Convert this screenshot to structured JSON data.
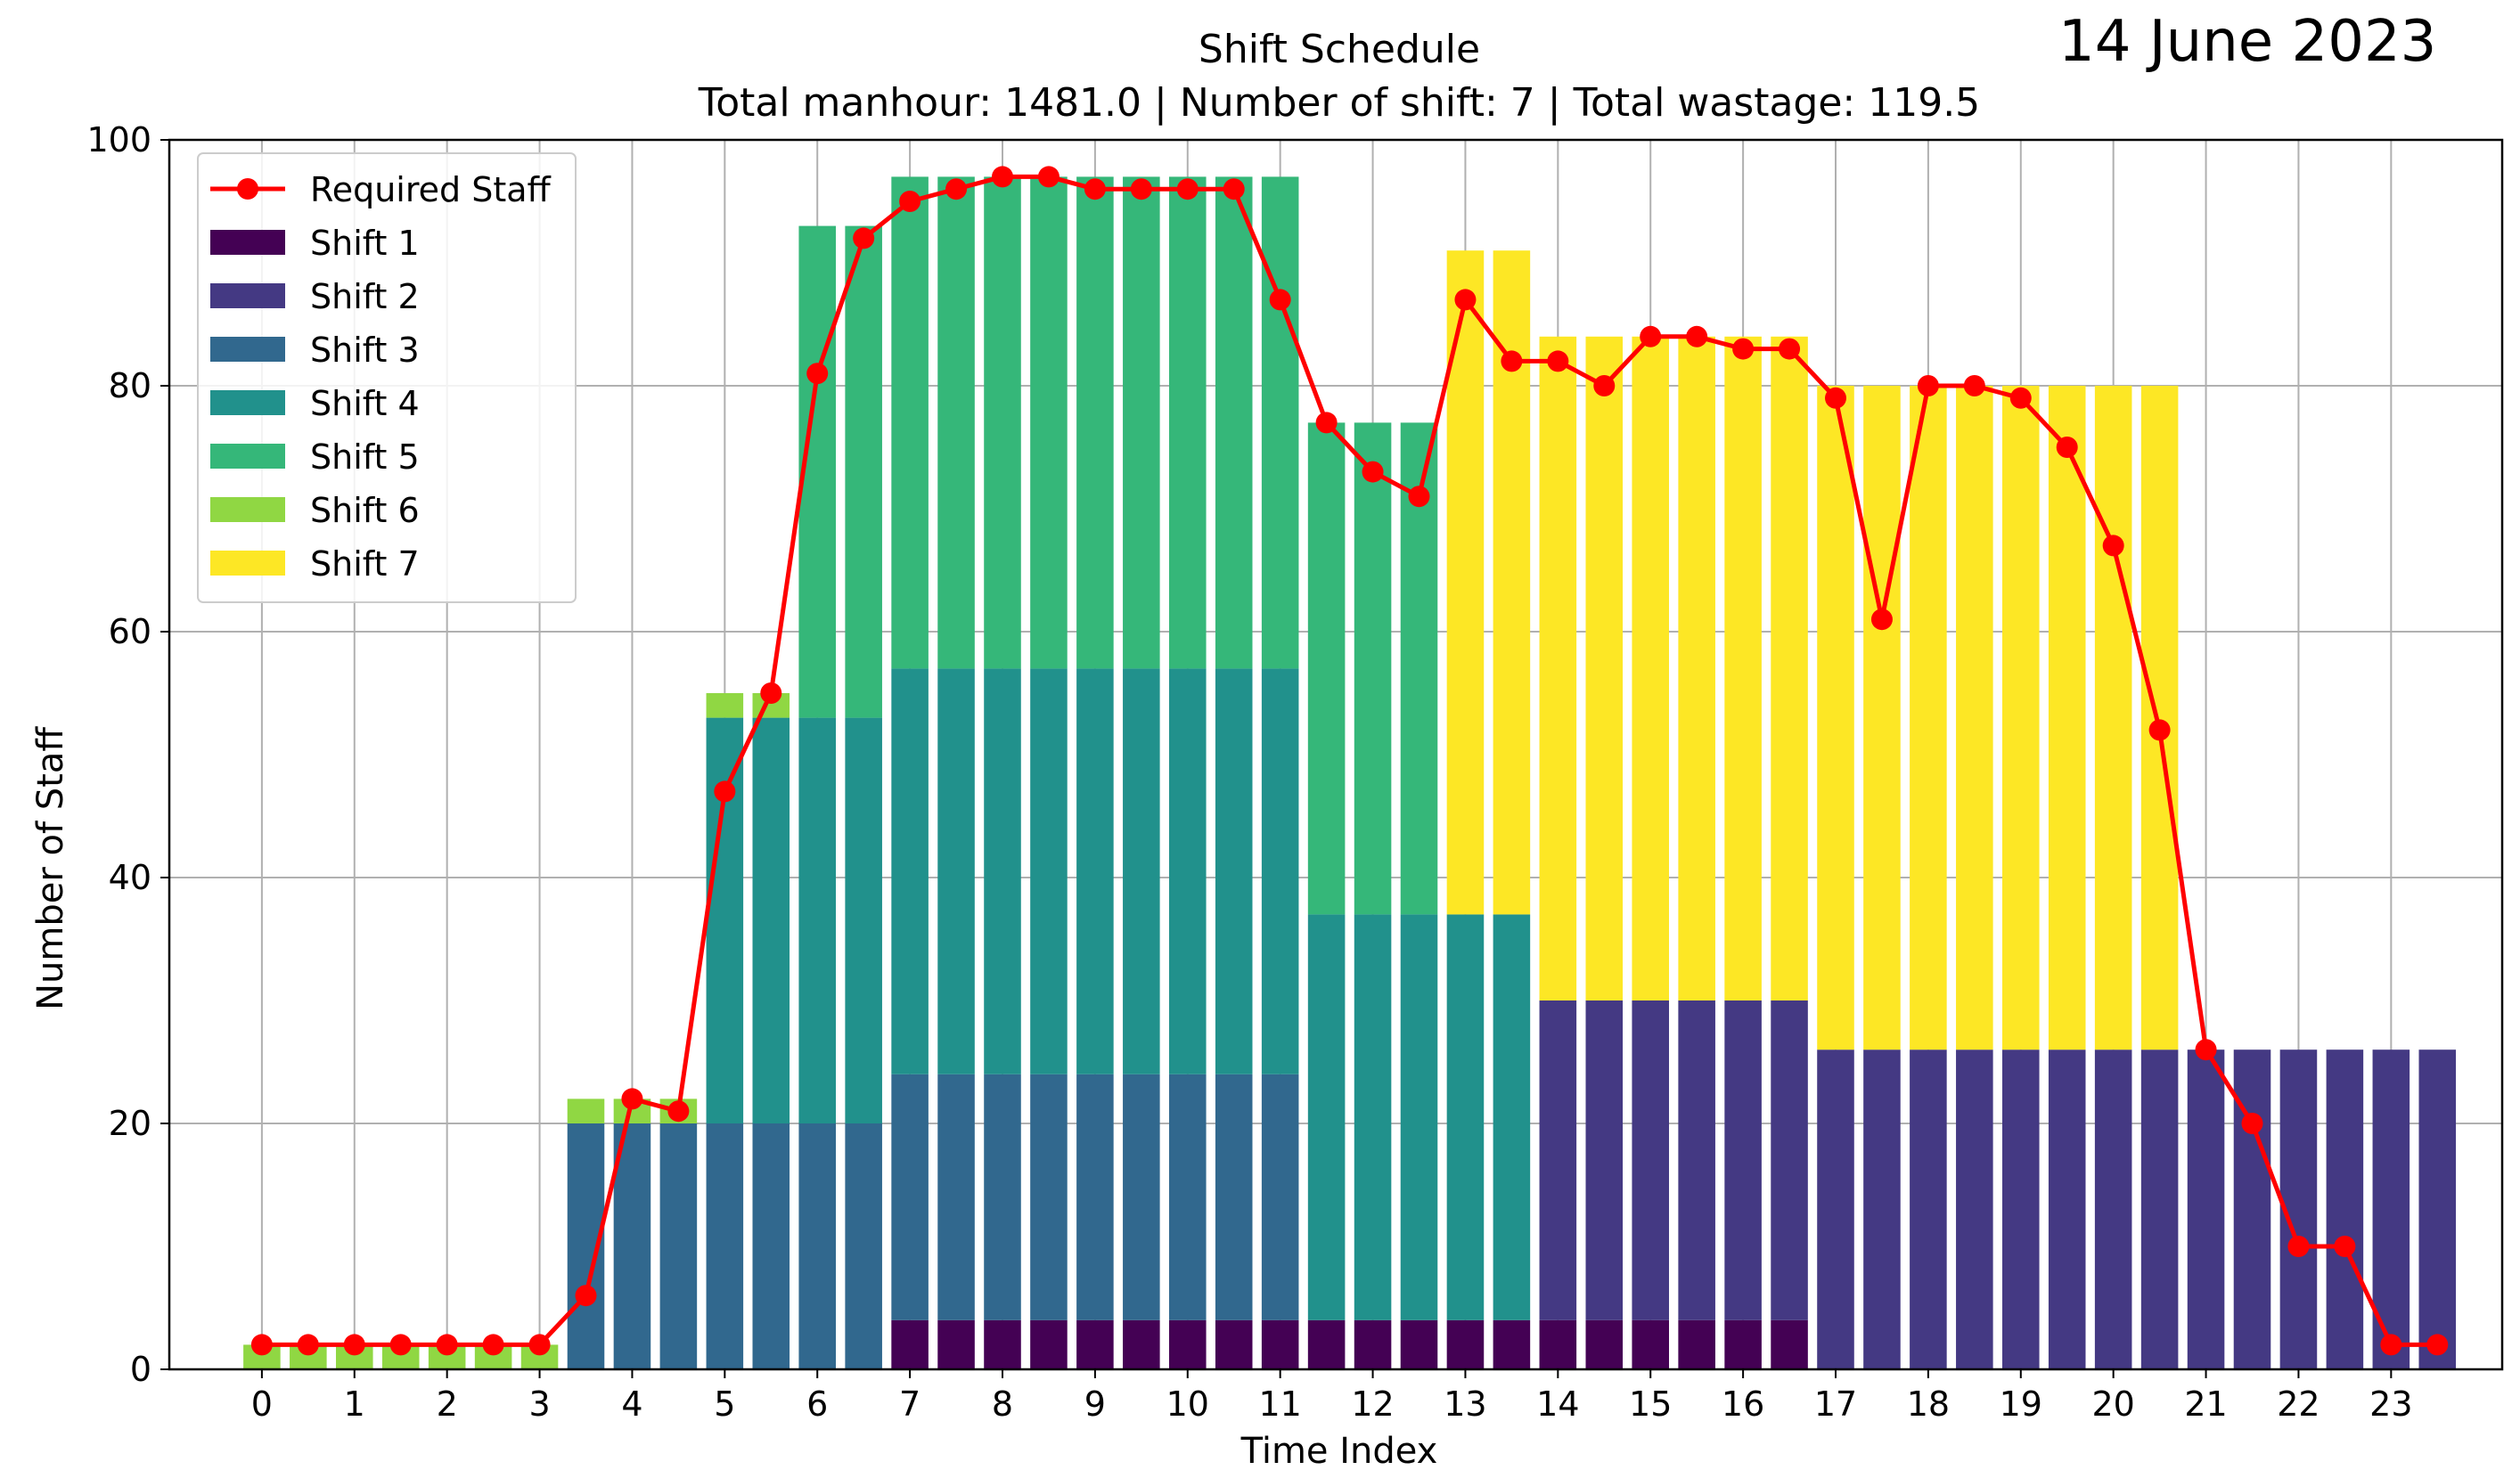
{
  "date_text": "14 June 2023",
  "chart_data": {
    "type": "bar",
    "stacked": true,
    "title": "Shift Schedule",
    "subtitle": "Total manhour: 1481.0 | Number of shift: 7 | Total wastage: 119.5",
    "xlabel": "Time Index",
    "ylabel": "Number of Staff",
    "xlim": [
      -1,
      24.2
    ],
    "ylim": [
      0,
      100
    ],
    "xticks": [
      0,
      1,
      2,
      3,
      4,
      5,
      6,
      7,
      8,
      9,
      10,
      11,
      12,
      13,
      14,
      15,
      16,
      17,
      18,
      19,
      20,
      21,
      22,
      23
    ],
    "yticks": [
      0,
      20,
      40,
      60,
      80,
      100
    ],
    "grid": true,
    "legend_position": "top-left",
    "bar_width": 0.4,
    "x": [
      0,
      0.5,
      1,
      1.5,
      2,
      2.5,
      3,
      3.5,
      4,
      4.5,
      5,
      5.5,
      6,
      6.5,
      7,
      7.5,
      8,
      8.5,
      9,
      9.5,
      10,
      10.5,
      11,
      11.5,
      12,
      12.5,
      13,
      13.5,
      14,
      14.5,
      15,
      15.5,
      16,
      16.5,
      17,
      17.5,
      18,
      18.5,
      19,
      19.5,
      20,
      20.5,
      21,
      21.5,
      22,
      22.5,
      23,
      23.5
    ],
    "series": [
      {
        "name": "Shift 1",
        "color": "#440154",
        "values": [
          0,
          0,
          0,
          0,
          0,
          0,
          0,
          0,
          0,
          0,
          0,
          0,
          0,
          0,
          4,
          4,
          4,
          4,
          4,
          4,
          4,
          4,
          4,
          4,
          4,
          4,
          4,
          4,
          4,
          4,
          4,
          4,
          4,
          4,
          0,
          0,
          0,
          0,
          0,
          0,
          0,
          0,
          0,
          0,
          0,
          0,
          0,
          0
        ]
      },
      {
        "name": "Shift 2",
        "color": "#443983",
        "values": [
          0,
          0,
          0,
          0,
          0,
          0,
          0,
          0,
          0,
          0,
          0,
          0,
          0,
          0,
          0,
          0,
          0,
          0,
          0,
          0,
          0,
          0,
          0,
          0,
          0,
          0,
          0,
          0,
          26,
          26,
          26,
          26,
          26,
          26,
          26,
          26,
          26,
          26,
          26,
          26,
          26,
          26,
          26,
          26,
          26,
          26,
          26,
          26
        ]
      },
      {
        "name": "Shift 3",
        "color": "#31688e",
        "values": [
          0,
          0,
          0,
          0,
          0,
          0,
          0,
          20,
          20,
          20,
          20,
          20,
          20,
          20,
          20,
          20,
          20,
          20,
          20,
          20,
          20,
          20,
          20,
          0,
          0,
          0,
          0,
          0,
          0,
          0,
          0,
          0,
          0,
          0,
          0,
          0,
          0,
          0,
          0,
          0,
          0,
          0,
          0,
          0,
          0,
          0,
          0,
          0
        ]
      },
      {
        "name": "Shift 4",
        "color": "#21918c",
        "values": [
          0,
          0,
          0,
          0,
          0,
          0,
          0,
          0,
          0,
          0,
          33,
          33,
          33,
          33,
          33,
          33,
          33,
          33,
          33,
          33,
          33,
          33,
          33,
          33,
          33,
          33,
          33,
          33,
          0,
          0,
          0,
          0,
          0,
          0,
          0,
          0,
          0,
          0,
          0,
          0,
          0,
          0,
          0,
          0,
          0,
          0,
          0,
          0
        ]
      },
      {
        "name": "Shift 5",
        "color": "#35b779",
        "values": [
          0,
          0,
          0,
          0,
          0,
          0,
          0,
          0,
          0,
          0,
          0,
          0,
          40,
          40,
          40,
          40,
          40,
          40,
          40,
          40,
          40,
          40,
          40,
          40,
          40,
          40,
          0,
          0,
          0,
          0,
          0,
          0,
          0,
          0,
          0,
          0,
          0,
          0,
          0,
          0,
          0,
          0,
          0,
          0,
          0,
          0,
          0,
          0
        ]
      },
      {
        "name": "Shift 6",
        "color": "#90d743",
        "values": [
          2,
          2,
          2,
          2,
          2,
          2,
          2,
          2,
          2,
          2,
          2,
          2,
          0,
          0,
          0,
          0,
          0,
          0,
          0,
          0,
          0,
          0,
          0,
          0,
          0,
          0,
          0,
          0,
          0,
          0,
          0,
          0,
          0,
          0,
          0,
          0,
          0,
          0,
          0,
          0,
          0,
          0,
          0,
          0,
          0,
          0,
          0,
          0
        ]
      },
      {
        "name": "Shift 7",
        "color": "#fde725",
        "values": [
          0,
          0,
          0,
          0,
          0,
          0,
          0,
          0,
          0,
          0,
          0,
          0,
          0,
          0,
          0,
          0,
          0,
          0,
          0,
          0,
          0,
          0,
          0,
          0,
          0,
          0,
          54,
          54,
          54,
          54,
          54,
          54,
          54,
          54,
          54,
          54,
          54,
          54,
          54,
          54,
          54,
          54,
          0,
          0,
          0,
          0,
          0,
          0
        ]
      }
    ],
    "line_series": {
      "name": "Required Staff",
      "color": "#ff0000",
      "values": [
        2,
        2,
        2,
        2,
        2,
        2,
        2,
        6,
        22,
        21,
        47,
        55,
        81,
        92,
        95,
        96,
        97,
        97,
        96,
        96,
        96,
        96,
        87,
        77,
        73,
        71,
        87,
        82,
        82,
        80,
        84,
        84,
        83,
        83,
        79,
        61,
        80,
        80,
        79,
        75,
        67,
        52,
        26,
        20,
        10,
        10,
        2,
        2
      ]
    }
  }
}
